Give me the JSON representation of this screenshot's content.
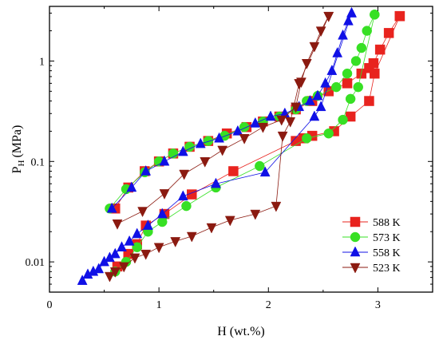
{
  "chart_data": {
    "type": "scatter",
    "title": "",
    "xlabel": "H (wt.%)",
    "ylabel_main": "P",
    "ylabel_sub": "H",
    "ylabel_unit": "(MPa)",
    "xlim": [
      0,
      3.5
    ],
    "ylim": [
      0.005,
      3.5
    ],
    "yscale": "log",
    "x_ticks": [
      0,
      1,
      2,
      3
    ],
    "y_ticks": [
      {
        "value": 0.01,
        "label": "0.01"
      },
      {
        "value": 0.1,
        "label": "0.1"
      },
      {
        "value": 1,
        "label": "1"
      }
    ],
    "grid": false,
    "legend_position": "bottom-right",
    "series": [
      {
        "name": "588 K",
        "marker": "square",
        "color": "#e8231e",
        "absorption": [
          [
            0.6,
            0.034
          ],
          [
            0.72,
            0.055
          ],
          [
            0.87,
            0.08
          ],
          [
            1.0,
            0.1
          ],
          [
            1.13,
            0.12
          ],
          [
            1.28,
            0.14
          ],
          [
            1.45,
            0.16
          ],
          [
            1.62,
            0.19
          ],
          [
            1.8,
            0.22
          ],
          [
            1.95,
            0.25
          ],
          [
            2.1,
            0.28
          ],
          [
            2.25,
            0.33
          ],
          [
            2.4,
            0.4
          ],
          [
            2.55,
            0.5
          ],
          [
            2.72,
            0.6
          ],
          [
            2.85,
            0.75
          ],
          [
            2.92,
            0.85
          ],
          [
            2.96,
            0.95
          ],
          [
            3.02,
            1.3
          ],
          [
            3.1,
            1.9
          ],
          [
            3.2,
            2.8
          ]
        ],
        "desorption": [
          [
            3.2,
            2.8
          ],
          [
            2.97,
            0.75
          ],
          [
            2.92,
            0.4
          ],
          [
            2.75,
            0.28
          ],
          [
            2.6,
            0.2
          ],
          [
            2.4,
            0.18
          ],
          [
            2.32,
            0.17
          ],
          [
            2.25,
            0.16
          ],
          [
            1.68,
            0.08
          ],
          [
            1.3,
            0.047
          ],
          [
            1.05,
            0.03
          ],
          [
            0.88,
            0.023
          ],
          [
            0.8,
            0.015
          ],
          [
            0.72,
            0.012
          ],
          [
            0.62,
            0.009
          ]
        ]
      },
      {
        "name": "573 K",
        "marker": "circle",
        "color": "#37e024",
        "absorption": [
          [
            0.55,
            0.034
          ],
          [
            0.7,
            0.053
          ],
          [
            0.87,
            0.078
          ],
          [
            1.0,
            0.1
          ],
          [
            1.13,
            0.12
          ],
          [
            1.28,
            0.14
          ],
          [
            1.45,
            0.16
          ],
          [
            1.6,
            0.18
          ],
          [
            1.78,
            0.22
          ],
          [
            1.95,
            0.25
          ],
          [
            2.1,
            0.28
          ],
          [
            2.25,
            0.33
          ],
          [
            2.35,
            0.4
          ],
          [
            2.45,
            0.45
          ],
          [
            2.62,
            0.55
          ],
          [
            2.72,
            0.75
          ],
          [
            2.8,
            1.0
          ],
          [
            2.85,
            1.35
          ],
          [
            2.9,
            2.0
          ],
          [
            2.97,
            2.9
          ]
        ],
        "desorption": [
          [
            2.97,
            2.9
          ],
          [
            2.82,
            0.55
          ],
          [
            2.75,
            0.42
          ],
          [
            2.68,
            0.26
          ],
          [
            2.55,
            0.19
          ],
          [
            2.35,
            0.17
          ],
          [
            1.92,
            0.09
          ],
          [
            1.52,
            0.055
          ],
          [
            1.25,
            0.036
          ],
          [
            1.03,
            0.025
          ],
          [
            0.9,
            0.02
          ],
          [
            0.8,
            0.014
          ],
          [
            0.7,
            0.01
          ],
          [
            0.6,
            0.008
          ]
        ]
      },
      {
        "name": "558 K",
        "marker": "triangle-up",
        "color": "#1010e6",
        "absorption": [
          [
            0.57,
            0.034
          ],
          [
            0.75,
            0.055
          ],
          [
            0.88,
            0.08
          ],
          [
            1.05,
            0.1
          ],
          [
            1.22,
            0.125
          ],
          [
            1.38,
            0.15
          ],
          [
            1.55,
            0.17
          ],
          [
            1.72,
            0.2
          ],
          [
            1.88,
            0.24
          ],
          [
            2.02,
            0.28
          ],
          [
            2.15,
            0.3
          ],
          [
            2.28,
            0.35
          ],
          [
            2.38,
            0.4
          ],
          [
            2.45,
            0.45
          ],
          [
            2.52,
            0.6
          ],
          [
            2.58,
            0.8
          ],
          [
            2.63,
            1.2
          ],
          [
            2.68,
            1.8
          ],
          [
            2.73,
            2.5
          ],
          [
            2.76,
            3.0
          ]
        ],
        "desorption": [
          [
            2.76,
            3.0
          ],
          [
            2.48,
            0.35
          ],
          [
            2.42,
            0.28
          ],
          [
            1.97,
            0.078
          ],
          [
            1.52,
            0.06
          ],
          [
            1.22,
            0.045
          ],
          [
            1.03,
            0.03
          ],
          [
            0.9,
            0.023
          ],
          [
            0.8,
            0.019
          ],
          [
            0.73,
            0.016
          ],
          [
            0.66,
            0.014
          ],
          [
            0.6,
            0.012
          ],
          [
            0.55,
            0.011
          ],
          [
            0.5,
            0.01
          ],
          [
            0.45,
            0.0085
          ],
          [
            0.4,
            0.008
          ],
          [
            0.35,
            0.0075
          ],
          [
            0.3,
            0.0065
          ]
        ]
      },
      {
        "name": "523 K",
        "marker": "triangle-down",
        "color": "#8b1a10",
        "absorption": [
          [
            0.62,
            0.024
          ],
          [
            0.85,
            0.032
          ],
          [
            1.05,
            0.048
          ],
          [
            1.23,
            0.075
          ],
          [
            1.42,
            0.1
          ],
          [
            1.58,
            0.13
          ],
          [
            1.78,
            0.17
          ],
          [
            1.95,
            0.22
          ],
          [
            2.12,
            0.26
          ],
          [
            2.25,
            0.35
          ],
          [
            2.3,
            0.62
          ],
          [
            2.35,
            0.95
          ],
          [
            2.42,
            1.4
          ],
          [
            2.48,
            2.0
          ],
          [
            2.55,
            2.8
          ]
        ],
        "desorption": [
          [
            2.55,
            2.8
          ],
          [
            2.28,
            0.6
          ],
          [
            2.2,
            0.25
          ],
          [
            2.13,
            0.18
          ],
          [
            2.07,
            0.036
          ],
          [
            1.88,
            0.03
          ],
          [
            1.65,
            0.026
          ],
          [
            1.48,
            0.022
          ],
          [
            1.3,
            0.018
          ],
          [
            1.15,
            0.016
          ],
          [
            1.0,
            0.014
          ],
          [
            0.88,
            0.012
          ],
          [
            0.78,
            0.011
          ],
          [
            0.68,
            0.009
          ],
          [
            0.6,
            0.008
          ],
          [
            0.55,
            0.0072
          ]
        ]
      }
    ]
  }
}
